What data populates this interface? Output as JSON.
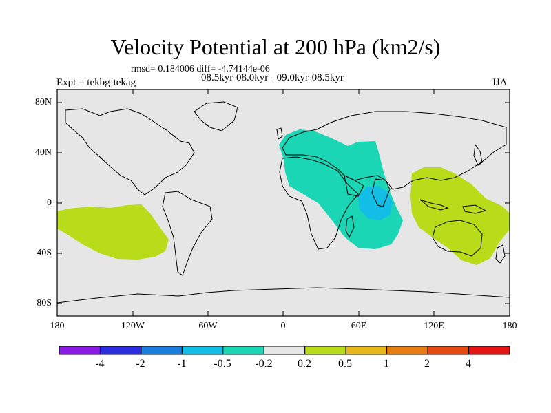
{
  "map": {
    "title": "Velocity Potential at 200 hPa (km2/s)",
    "stats": "rmsd= 0.184006 diff= -4.74144e-06",
    "experiment": "Expt = tekbg-tekag",
    "periods": "08.5kyr-08.0kyr - 09.0kyr-08.5kyr",
    "season": "JJA",
    "projection": "cylindrical equidistant",
    "lon_range": [
      -180,
      180
    ],
    "lat_range": [
      -90,
      90
    ],
    "lat_labels": [
      "80N",
      "40N",
      "0",
      "40S",
      "80S"
    ],
    "lon_labels": [
      "180",
      "120W",
      "60W",
      "0",
      "60E",
      "120E",
      "180"
    ]
  },
  "colorbar": {
    "labels": [
      "-4",
      "-2",
      "-1",
      "-0.5",
      "-0.2",
      "0.2",
      "0.5",
      "1",
      "2",
      "4"
    ],
    "colors": [
      "#8a1ae6",
      "#2c2ce0",
      "#1a7fdc",
      "#12bde6",
      "#1ad6b4",
      "#e6e6e6",
      "#b8db1a",
      "#e6b81a",
      "#e67d10",
      "#e64a10",
      "#e61414"
    ]
  },
  "colors": {
    "land_ocean_bg": "#e6e6e6",
    "coast": "#000000",
    "weak_negative": "#1ad6b4",
    "moderate_negative": "#12bde6",
    "weak_positive": "#b8db1a"
  }
}
